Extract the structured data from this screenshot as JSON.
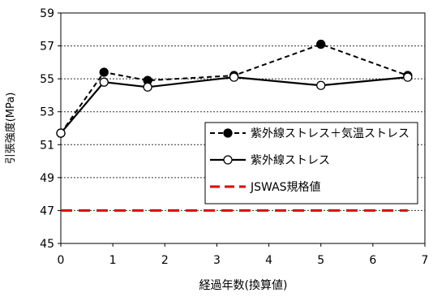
{
  "chart_data": {
    "type": "line",
    "xlabel": "経過年数(換算値)",
    "ylabel": "引張強度(MPa)",
    "xlim": [
      0,
      7
    ],
    "ylim": [
      45,
      59
    ],
    "xticks": [
      0,
      1,
      2,
      3,
      4,
      5,
      6,
      7
    ],
    "yticks": [
      45,
      47,
      49,
      51,
      53,
      55,
      57,
      59
    ],
    "grid": "horizontal dotted",
    "legend_position": "right-center",
    "series": [
      {
        "name": "紫外線ストレス＋気温ストレス",
        "style": "dashed",
        "marker": "filled-circle",
        "color": "#000000",
        "x": [
          0,
          0.83,
          1.67,
          3.33,
          5,
          6.67
        ],
        "y": [
          51.7,
          55.4,
          54.9,
          55.2,
          57.1,
          55.2
        ]
      },
      {
        "name": "紫外線ストレス",
        "style": "solid",
        "marker": "open-circle",
        "color": "#000000",
        "x": [
          0,
          0.83,
          1.67,
          3.33,
          5,
          6.67
        ],
        "y": [
          51.7,
          54.8,
          54.5,
          55.1,
          54.6,
          55.1
        ]
      },
      {
        "name": "JSWAS規格値",
        "style": "dashed",
        "marker": "none",
        "color": "#e00000",
        "x": [
          0,
          6.67
        ],
        "y": [
          47,
          47
        ]
      }
    ]
  }
}
